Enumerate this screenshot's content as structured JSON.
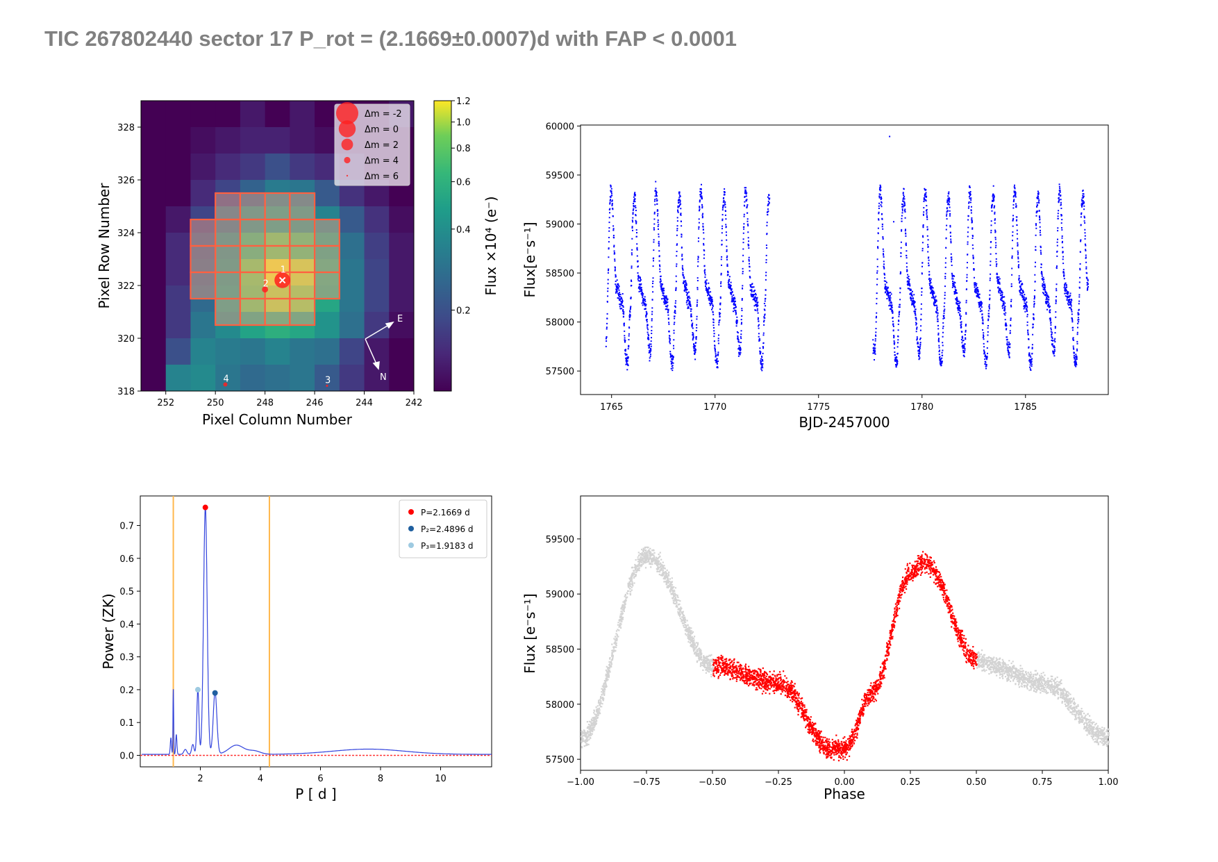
{
  "title": "TIC 267802440 sector 17 P_rot = (2.1669±0.0007)d with FAP < 0.0001",
  "chart_data": [
    {
      "type": "heatmap",
      "xlabel": "Pixel Column Number",
      "ylabel": "Pixel Row Number",
      "xticks": [
        "252",
        "250",
        "248",
        "246",
        "244",
        "242"
      ],
      "yticks": [
        "318",
        "320",
        "322",
        "324",
        "326",
        "328"
      ],
      "colorbar_label": "Flux ×10⁴ (e⁻)",
      "colorbar_ticks": [
        "1.2",
        "1.0",
        "0.8",
        "0.6",
        "0.4",
        "0.2"
      ],
      "colorbar_tick_values": [
        1.2,
        1.0,
        0.8,
        0.6,
        0.4,
        0.2
      ],
      "legend_labels": [
        "Δm = -2",
        "Δm = 0",
        "Δm = 2",
        "Δm = 4",
        "Δm = 6"
      ],
      "star_labels": [
        "1",
        "2",
        "3",
        "4"
      ],
      "compass": [
        "E",
        "N"
      ],
      "xlim": [
        253,
        242
      ],
      "ylim": [
        318,
        329
      ],
      "grid": [
        [
          0.05,
          0.08,
          0.1,
          0.1,
          0.12,
          0.1,
          0.12,
          0.1,
          0.08,
          0.1,
          0.12
        ],
        [
          0.06,
          0.08,
          0.11,
          0.12,
          0.13,
          0.13,
          0.12,
          0.11,
          0.1,
          0.1,
          0.1
        ],
        [
          0.06,
          0.09,
          0.12,
          0.14,
          0.16,
          0.2,
          0.16,
          0.14,
          0.12,
          0.1,
          0.09
        ],
        [
          0.07,
          0.1,
          0.14,
          0.18,
          0.24,
          0.32,
          0.3,
          0.22,
          0.15,
          0.12,
          0.1
        ],
        [
          0.08,
          0.12,
          0.18,
          0.28,
          0.4,
          0.45,
          0.42,
          0.35,
          0.22,
          0.15,
          0.11
        ],
        [
          0.09,
          0.14,
          0.22,
          0.38,
          0.62,
          0.8,
          0.7,
          0.48,
          0.28,
          0.17,
          0.12
        ],
        [
          0.09,
          0.14,
          0.24,
          0.42,
          0.85,
          1.15,
          1.05,
          0.55,
          0.3,
          0.18,
          0.12
        ],
        [
          0.1,
          0.16,
          0.26,
          0.45,
          0.8,
          1.0,
          0.92,
          0.52,
          0.3,
          0.18,
          0.12
        ],
        [
          0.09,
          0.16,
          0.3,
          0.38,
          0.5,
          0.58,
          0.52,
          0.42,
          0.28,
          0.16,
          0.11
        ],
        [
          0.1,
          0.2,
          0.35,
          0.32,
          0.3,
          0.35,
          0.3,
          0.28,
          0.18,
          0.12,
          0.1
        ],
        [
          0.1,
          0.35,
          0.38,
          0.3,
          0.26,
          0.28,
          0.3,
          0.22,
          0.16,
          0.12,
          0.1
        ]
      ],
      "aperture": [
        [
          0,
          0,
          0,
          1,
          1,
          1,
          1,
          0,
          0,
          0,
          0
        ],
        [
          0,
          0,
          1,
          1,
          1,
          1,
          1,
          1,
          0,
          0,
          0
        ],
        [
          0,
          0,
          1,
          1,
          1,
          1,
          1,
          1,
          0,
          0,
          0
        ],
        [
          0,
          0,
          1,
          1,
          1,
          1,
          1,
          1,
          0,
          0,
          0
        ],
        [
          0,
          0,
          0,
          1,
          1,
          1,
          1,
          0,
          0,
          0,
          0
        ]
      ],
      "aperture_top_row": 325,
      "stars": [
        {
          "label": "1",
          "col": 247.3,
          "row": 322.2,
          "dm": -1
        },
        {
          "label": "2",
          "col": 248.0,
          "row": 321.85,
          "dm": 4
        },
        {
          "label": "3",
          "col": 245.5,
          "row": 318.2,
          "dm": 6
        },
        {
          "label": "4",
          "col": 249.6,
          "row": 318.25,
          "dm": 5
        }
      ]
    },
    {
      "type": "scatter",
      "xlabel": "BJD-2457000",
      "ylabel": "Flux[e⁻s⁻¹]",
      "xlim": [
        1763.5,
        1789
      ],
      "ylim": [
        57260,
        60010
      ],
      "xticks": [
        1765,
        1770,
        1775,
        1780,
        1785
      ],
      "yticks": [
        57500,
        58000,
        58500,
        59000,
        59500,
        60000
      ],
      "color": "#0000ff",
      "segments": [
        [
          1764.7,
          1772.6
        ],
        [
          1777.6,
          1788.0
        ]
      ],
      "period": 2.1669,
      "t0": 1764.67,
      "model_knots": {
        "phase": [
          -1.0,
          -0.75,
          -0.5,
          -0.25,
          -0.05,
          0.0,
          0.1,
          0.25,
          0.3,
          0.5,
          0.75,
          1.0
        ],
        "flux": [
          57700,
          59350,
          58350,
          58200,
          57600,
          57600,
          58100,
          59200,
          59300,
          58400,
          58200,
          57700
        ]
      },
      "outliers": [
        [
          1778.4,
          59900
        ],
        [
          1778.6,
          59030
        ]
      ]
    },
    {
      "type": "line",
      "xlabel": "P [ d ]",
      "ylabel": "Power (ZK)",
      "xlim": [
        0,
        11.7
      ],
      "ylim": [
        -0.035,
        0.79
      ],
      "xticks": [
        2,
        4,
        6,
        8,
        10
      ],
      "yticks": [
        0.0,
        0.1,
        0.2,
        0.3,
        0.4,
        0.5,
        0.6,
        0.7
      ],
      "vlines": [
        1.1,
        4.3
      ],
      "vline_color": "#ffb84d",
      "line_color": "#3344dd",
      "baseline_color": "#ff3333",
      "legend": [
        "P=2.1669 d",
        "P₂=2.4896 d",
        "P₃=1.9183 d"
      ],
      "legend_colors": [
        "#ff0000",
        "#1f5f9f",
        "#9ecae1"
      ],
      "peaks": [
        {
          "x": 2.1669,
          "y": 0.755,
          "w": 0.06
        },
        {
          "x": 2.4896,
          "y": 0.19,
          "w": 0.06
        },
        {
          "x": 1.9183,
          "y": 0.2,
          "w": 0.035
        },
        {
          "x": 1.1,
          "y": 0.2,
          "w": 0.012
        },
        {
          "x": 1.02,
          "y": 0.05,
          "w": 0.02
        },
        {
          "x": 1.2,
          "y": 0.06,
          "w": 0.02
        },
        {
          "x": 1.5,
          "y": 0.015,
          "w": 0.05
        },
        {
          "x": 1.75,
          "y": 0.03,
          "w": 0.04
        },
        {
          "x": 3.2,
          "y": 0.028,
          "w": 0.25
        },
        {
          "x": 3.8,
          "y": 0.01,
          "w": 0.2
        },
        {
          "x": 7.6,
          "y": 0.016,
          "w": 1.2
        }
      ],
      "markers": [
        {
          "x": 2.1669,
          "y": 0.755,
          "color": "#ff0000"
        },
        {
          "x": 2.4896,
          "y": 0.19,
          "color": "#1f5f9f"
        },
        {
          "x": 1.9183,
          "y": 0.2,
          "color": "#9ecae1"
        }
      ]
    },
    {
      "type": "scatter",
      "xlabel": "Phase",
      "ylabel": "Flux [e⁻s⁻¹]",
      "xlim": [
        -1.0,
        1.0
      ],
      "ylim": [
        57400,
        59890
      ],
      "xticks": [
        "−1.00",
        "−0.75",
        "−0.50",
        "−0.25",
        "0.00",
        "0.25",
        "0.50",
        "0.75",
        "1.00"
      ],
      "xtick_values": [
        -1.0,
        -0.75,
        -0.5,
        -0.25,
        0.0,
        0.25,
        0.5,
        0.75,
        1.0
      ],
      "yticks": [
        57500,
        58000,
        58500,
        59000,
        59500
      ],
      "highlight_range": [
        -0.5,
        0.5
      ],
      "highlight_color": "#ff0000",
      "outside_color": "#d3d3d3"
    }
  ]
}
